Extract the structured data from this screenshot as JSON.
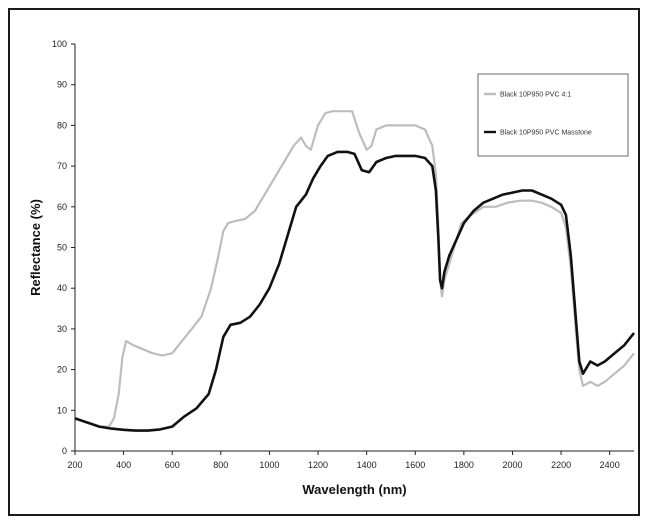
{
  "chart_data": {
    "type": "line",
    "title": "",
    "xlabel": "Wavelength (nm)",
    "ylabel": "Reflectance (%)",
    "xlim": [
      200,
      2500
    ],
    "ylim": [
      0,
      100
    ],
    "x_ticks": [
      200,
      400,
      600,
      800,
      1000,
      1200,
      1400,
      1600,
      1800,
      2000,
      2200,
      2400
    ],
    "y_ticks": [
      0,
      10,
      20,
      30,
      40,
      50,
      60,
      70,
      80,
      90,
      100
    ],
    "grid": false,
    "legend_position": "top-right",
    "series": [
      {
        "name": "Black 10P950 PVC 4:1",
        "color": "#bdbdbd",
        "points": [
          [
            200,
            8
          ],
          [
            250,
            7
          ],
          [
            300,
            6
          ],
          [
            340,
            6
          ],
          [
            360,
            8
          ],
          [
            380,
            14
          ],
          [
            395,
            23
          ],
          [
            410,
            27
          ],
          [
            440,
            26
          ],
          [
            480,
            25
          ],
          [
            520,
            24
          ],
          [
            560,
            23.5
          ],
          [
            600,
            24
          ],
          [
            640,
            27
          ],
          [
            680,
            30
          ],
          [
            720,
            33
          ],
          [
            760,
            40
          ],
          [
            790,
            48
          ],
          [
            810,
            54
          ],
          [
            830,
            56
          ],
          [
            860,
            56.5
          ],
          [
            900,
            57
          ],
          [
            940,
            59
          ],
          [
            980,
            63
          ],
          [
            1020,
            67
          ],
          [
            1060,
            71
          ],
          [
            1100,
            75
          ],
          [
            1130,
            77
          ],
          [
            1150,
            75
          ],
          [
            1170,
            74
          ],
          [
            1200,
            80
          ],
          [
            1230,
            83
          ],
          [
            1260,
            83.5
          ],
          [
            1300,
            83.5
          ],
          [
            1340,
            83.5
          ],
          [
            1370,
            78
          ],
          [
            1400,
            74
          ],
          [
            1420,
            75
          ],
          [
            1440,
            79
          ],
          [
            1480,
            80
          ],
          [
            1520,
            80
          ],
          [
            1560,
            80
          ],
          [
            1600,
            80
          ],
          [
            1640,
            79
          ],
          [
            1670,
            75
          ],
          [
            1685,
            68
          ],
          [
            1695,
            55
          ],
          [
            1702,
            42
          ],
          [
            1710,
            38
          ],
          [
            1720,
            42
          ],
          [
            1740,
            46
          ],
          [
            1760,
            50
          ],
          [
            1790,
            56
          ],
          [
            1830,
            58
          ],
          [
            1880,
            60
          ],
          [
            1930,
            60
          ],
          [
            1980,
            61
          ],
          [
            2030,
            61.5
          ],
          [
            2080,
            61.5
          ],
          [
            2120,
            61
          ],
          [
            2160,
            60
          ],
          [
            2200,
            58.5
          ],
          [
            2220,
            55
          ],
          [
            2240,
            45
          ],
          [
            2260,
            30
          ],
          [
            2275,
            20
          ],
          [
            2290,
            16
          ],
          [
            2320,
            17
          ],
          [
            2350,
            16
          ],
          [
            2380,
            17
          ],
          [
            2420,
            19
          ],
          [
            2460,
            21
          ],
          [
            2500,
            24
          ]
        ]
      },
      {
        "name": "Black 10P950 PVC Masstone",
        "color": "#111111",
        "points": [
          [
            200,
            8
          ],
          [
            250,
            7
          ],
          [
            300,
            6
          ],
          [
            350,
            5.5
          ],
          [
            400,
            5.2
          ],
          [
            450,
            5
          ],
          [
            500,
            5
          ],
          [
            550,
            5.3
          ],
          [
            600,
            6
          ],
          [
            650,
            8.5
          ],
          [
            700,
            10.5
          ],
          [
            750,
            14
          ],
          [
            780,
            20
          ],
          [
            810,
            28
          ],
          [
            840,
            31
          ],
          [
            880,
            31.5
          ],
          [
            920,
            33
          ],
          [
            960,
            36
          ],
          [
            1000,
            40
          ],
          [
            1040,
            46
          ],
          [
            1080,
            54
          ],
          [
            1110,
            60
          ],
          [
            1150,
            63
          ],
          [
            1180,
            67
          ],
          [
            1210,
            70
          ],
          [
            1240,
            72.5
          ],
          [
            1280,
            73.5
          ],
          [
            1320,
            73.5
          ],
          [
            1350,
            73
          ],
          [
            1380,
            69
          ],
          [
            1410,
            68.5
          ],
          [
            1440,
            71
          ],
          [
            1480,
            72
          ],
          [
            1520,
            72.5
          ],
          [
            1560,
            72.5
          ],
          [
            1600,
            72.5
          ],
          [
            1640,
            72
          ],
          [
            1670,
            70
          ],
          [
            1685,
            64
          ],
          [
            1695,
            52
          ],
          [
            1702,
            42
          ],
          [
            1710,
            40
          ],
          [
            1720,
            44
          ],
          [
            1740,
            48
          ],
          [
            1770,
            52
          ],
          [
            1800,
            56
          ],
          [
            1840,
            59
          ],
          [
            1880,
            61
          ],
          [
            1920,
            62
          ],
          [
            1960,
            63
          ],
          [
            2000,
            63.5
          ],
          [
            2040,
            64
          ],
          [
            2080,
            64
          ],
          [
            2120,
            63
          ],
          [
            2160,
            62
          ],
          [
            2200,
            60.5
          ],
          [
            2220,
            58
          ],
          [
            2240,
            48
          ],
          [
            2260,
            33
          ],
          [
            2275,
            22
          ],
          [
            2290,
            19
          ],
          [
            2320,
            22
          ],
          [
            2350,
            21
          ],
          [
            2380,
            22
          ],
          [
            2420,
            24
          ],
          [
            2460,
            26
          ],
          [
            2500,
            29
          ]
        ]
      }
    ]
  }
}
